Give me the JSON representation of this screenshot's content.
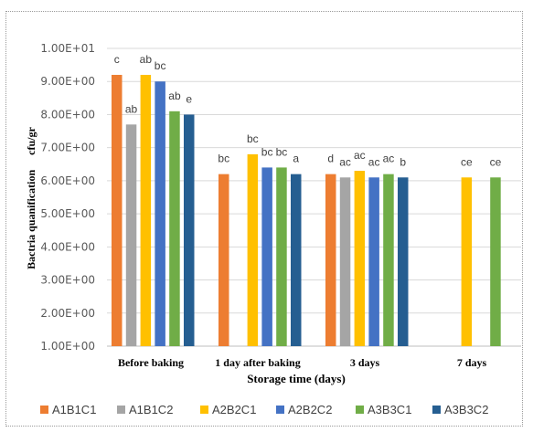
{
  "chart_data": {
    "type": "bar",
    "title": "",
    "xlabel": "Storage time (days)",
    "ylabel_parts": [
      "Bactria quanification",
      "cfu/gr"
    ],
    "ylim": [
      1,
      10
    ],
    "yticks": [
      1,
      2,
      3,
      4,
      5,
      6,
      7,
      8,
      9,
      10
    ],
    "ytick_labels": [
      "1.00E+00",
      "2.00E+00",
      "3.00E+00",
      "4.00E+00",
      "5.00E+00",
      "6.00E+00",
      "7.00E+00",
      "8.00E+00",
      "9.00E+00",
      "1.00E+01"
    ],
    "grid": true,
    "legend_position": "bottom",
    "categories": [
      "Before baking",
      "1 day after baking",
      "3 days",
      "7 days"
    ],
    "series": [
      {
        "name": "A1B1C1",
        "color": "#ED7D31",
        "values": [
          9.2,
          6.2,
          6.2,
          null
        ],
        "labels": [
          "c",
          "bc",
          "d",
          ""
        ]
      },
      {
        "name": "A1B1C2",
        "color": "#A5A5A5",
        "values": [
          7.7,
          null,
          6.1,
          null
        ],
        "labels": [
          "ab",
          "",
          "ac",
          ""
        ]
      },
      {
        "name": "A2B2C1",
        "color": "#FFC000",
        "values": [
          9.2,
          6.8,
          6.3,
          6.1
        ],
        "labels": [
          "ab",
          "bc",
          "ac",
          "ce"
        ]
      },
      {
        "name": "A2B2C2",
        "color": "#4472C4",
        "values": [
          9.0,
          6.4,
          6.1,
          null
        ],
        "labels": [
          "bc",
          "bc",
          "ac",
          ""
        ]
      },
      {
        "name": "A3B3C1",
        "color": "#70AD47",
        "values": [
          8.1,
          6.4,
          6.2,
          6.1
        ],
        "labels": [
          "ab",
          "bc",
          "ac",
          "ce"
        ]
      },
      {
        "name": "A3B3C2",
        "color": "#255E91",
        "values": [
          8.0,
          6.2,
          6.1,
          null
        ],
        "labels": [
          "e",
          "a",
          "b",
          ""
        ]
      }
    ]
  }
}
